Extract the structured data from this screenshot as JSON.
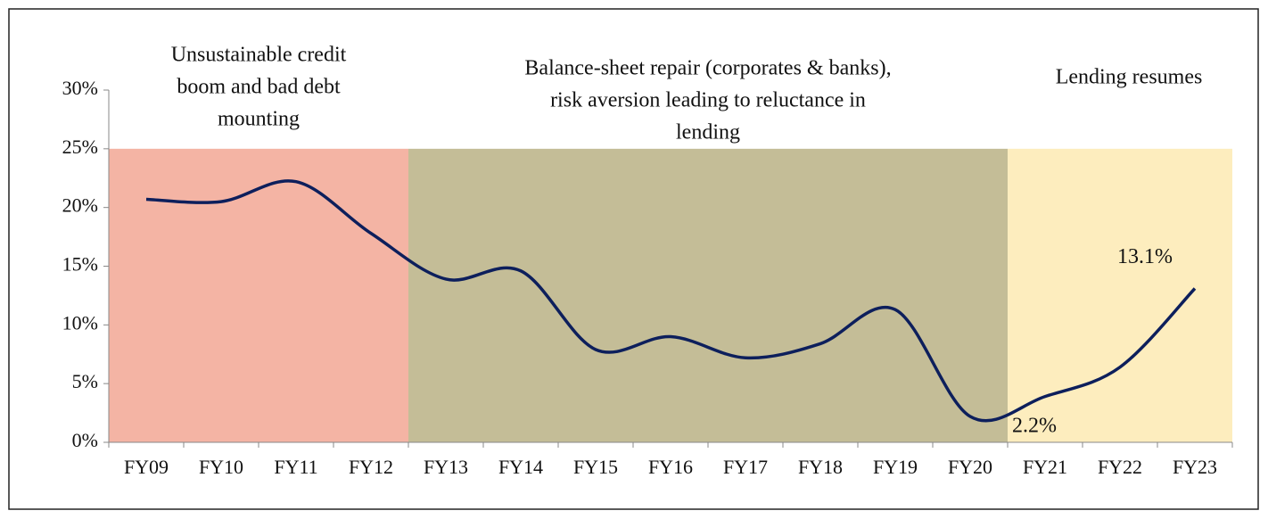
{
  "chart_data": {
    "type": "line",
    "categories": [
      "FY09",
      "FY10",
      "FY11",
      "FY12",
      "FY13",
      "FY14",
      "FY15",
      "FY16",
      "FY17",
      "FY18",
      "FY19",
      "FY20",
      "FY21",
      "FY22",
      "FY23"
    ],
    "series": [
      {
        "color": "#0d1f5c",
        "values": [
          20.7,
          20.5,
          22.2,
          17.8,
          13.9,
          14.6,
          7.9,
          9.0,
          7.2,
          8.4,
          11.3,
          2.2,
          3.9,
          6.4,
          13.1
        ],
        "value_labels": [
          null,
          null,
          null,
          null,
          null,
          null,
          null,
          null,
          null,
          null,
          null,
          "2.2%",
          null,
          null,
          "13.1%"
        ]
      }
    ],
    "ylim": [
      0,
      30
    ],
    "yticks": [
      {
        "value": 0,
        "label": "0%"
      },
      {
        "value": 5,
        "label": "5%"
      },
      {
        "value": 10,
        "label": "10%"
      },
      {
        "value": 15,
        "label": "15%"
      },
      {
        "value": 20,
        "label": "20%"
      },
      {
        "value": 25,
        "label": "25%"
      },
      {
        "value": 30,
        "label": "30%"
      }
    ],
    "regions": [
      {
        "label": [
          "Unsustainable credit",
          "boom and bad debt",
          "mounting"
        ],
        "span": [
          "FY09",
          "FY12"
        ],
        "top": 25,
        "color": "#f4b4a4"
      },
      {
        "label": [
          "Balance-sheet repair (corporates & banks),",
          "risk aversion leading to reluctance in",
          "lending"
        ],
        "span": [
          "FY13",
          "FY20"
        ],
        "top": 25,
        "color": "#c4bd97"
      },
      {
        "label": [
          "Lending resumes"
        ],
        "span": [
          "FY21",
          "FY23"
        ],
        "top": 25,
        "color": "#fdedbe"
      }
    ]
  }
}
